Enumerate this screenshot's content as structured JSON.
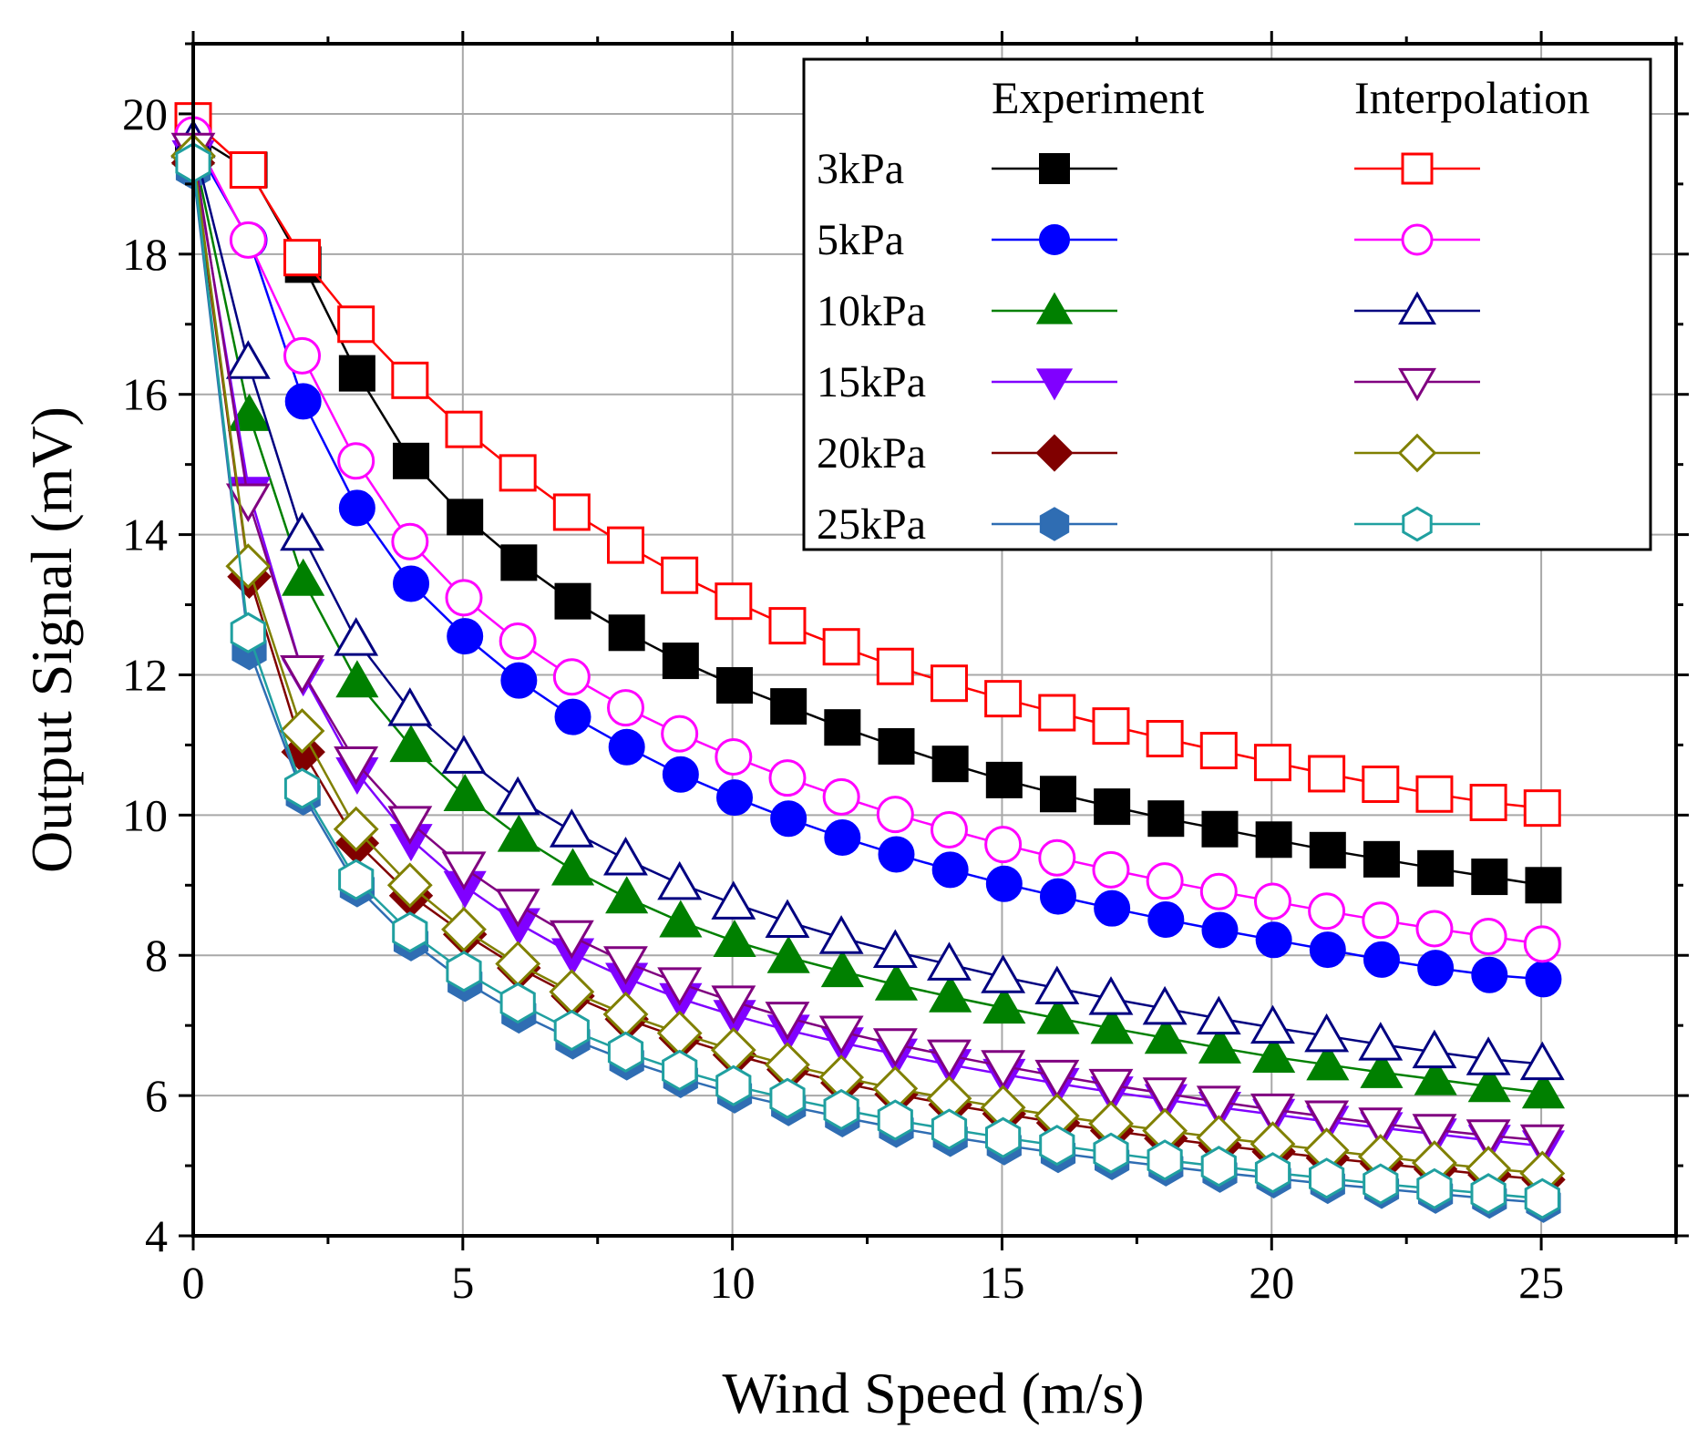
{
  "chart_data": {
    "type": "line",
    "title": "",
    "xlabel": "Wind Speed  (m/s)",
    "ylabel": "Output Signal  (mV)",
    "xlim": [
      0,
      27.5
    ],
    "ylim": [
      4,
      21
    ],
    "xticks": [
      0,
      5,
      10,
      15,
      20,
      25
    ],
    "yticks": [
      4,
      6,
      8,
      10,
      12,
      14,
      16,
      18,
      20
    ],
    "grid": true,
    "legend": {
      "position": "top-right",
      "headers": [
        "Experiment",
        "Interpolation"
      ],
      "rows": [
        "3kPa",
        "5kPa",
        "10kPa",
        "15kPa",
        "20kPa",
        "25kPa"
      ]
    },
    "x": [
      0,
      1,
      2,
      3,
      4,
      5,
      6,
      7,
      8,
      9,
      10,
      11,
      12,
      13,
      14,
      15,
      16,
      17,
      18,
      19,
      20,
      21,
      22,
      23,
      24,
      25
    ],
    "series": [
      {
        "name": "3kPa",
        "group": "Experiment",
        "color": "#000000",
        "marker": "square",
        "filled": true,
        "values": [
          19.7,
          19.2,
          17.85,
          16.3,
          15.05,
          14.25,
          13.6,
          13.05,
          12.6,
          12.2,
          11.85,
          11.55,
          11.25,
          10.98,
          10.73,
          10.5,
          10.3,
          10.12,
          9.95,
          9.8,
          9.65,
          9.5,
          9.37,
          9.24,
          9.12,
          9.0
        ]
      },
      {
        "name": "5kPa",
        "group": "Experiment",
        "color": "#0000ff",
        "marker": "circle",
        "filled": true,
        "values": [
          19.6,
          18.2,
          15.9,
          14.38,
          13.3,
          12.55,
          11.92,
          11.4,
          10.97,
          10.58,
          10.25,
          9.95,
          9.68,
          9.44,
          9.22,
          9.02,
          8.84,
          8.67,
          8.51,
          8.36,
          8.22,
          8.08,
          7.94,
          7.82,
          7.72,
          7.66
        ]
      },
      {
        "name": "10kPa",
        "group": "Experiment",
        "color": "#008000",
        "marker": "triangle-up",
        "filled": true,
        "values": [
          19.5,
          15.7,
          13.35,
          11.9,
          10.98,
          10.28,
          9.7,
          9.22,
          8.82,
          8.48,
          8.2,
          7.97,
          7.77,
          7.58,
          7.41,
          7.25,
          7.1,
          6.96,
          6.82,
          6.68,
          6.55,
          6.44,
          6.33,
          6.23,
          6.13,
          6.04
        ]
      },
      {
        "name": "15kPa",
        "group": "Experiment",
        "color": "#8000ff",
        "marker": "triangle-down",
        "filled": true,
        "values": [
          19.4,
          14.6,
          12.0,
          10.6,
          9.65,
          8.98,
          8.45,
          8.02,
          7.67,
          7.38,
          7.14,
          6.93,
          6.75,
          6.59,
          6.44,
          6.3,
          6.17,
          6.05,
          5.94,
          5.83,
          5.73,
          5.63,
          5.54,
          5.45,
          5.36,
          5.28
        ]
      },
      {
        "name": "20kPa",
        "group": "Experiment",
        "color": "#800000",
        "marker": "diamond",
        "filled": true,
        "values": [
          19.3,
          13.4,
          10.9,
          9.6,
          8.85,
          8.3,
          7.82,
          7.42,
          7.09,
          6.82,
          6.58,
          6.37,
          6.18,
          6.02,
          5.87,
          5.74,
          5.61,
          5.5,
          5.39,
          5.29,
          5.2,
          5.11,
          5.03,
          4.95,
          4.87,
          4.8
        ]
      },
      {
        "name": "25kPa",
        "group": "Experiment",
        "color": "#2f6db3",
        "marker": "hexagon",
        "filled": true,
        "values": [
          19.2,
          12.35,
          10.28,
          8.97,
          8.2,
          7.62,
          7.17,
          6.8,
          6.5,
          6.25,
          6.03,
          5.85,
          5.69,
          5.54,
          5.41,
          5.29,
          5.18,
          5.08,
          4.99,
          4.9,
          4.82,
          4.74,
          4.67,
          4.6,
          4.53,
          4.47
        ]
      },
      {
        "name": "3kPa",
        "group": "Interpolation",
        "color": "#ff0000",
        "marker": "square",
        "filled": false,
        "values": [
          19.9,
          19.2,
          17.95,
          17.0,
          16.2,
          15.5,
          14.88,
          14.32,
          13.85,
          13.42,
          13.05,
          12.7,
          12.4,
          12.12,
          11.88,
          11.66,
          11.46,
          11.27,
          11.09,
          10.92,
          10.75,
          10.59,
          10.44,
          10.3,
          10.18,
          10.1
        ]
      },
      {
        "name": "5kPa",
        "group": "Interpolation",
        "color": "#ff00ff",
        "marker": "circle",
        "filled": false,
        "values": [
          19.7,
          18.2,
          16.55,
          15.05,
          13.9,
          13.1,
          12.48,
          11.97,
          11.53,
          11.16,
          10.83,
          10.53,
          10.26,
          10.01,
          9.79,
          9.58,
          9.39,
          9.22,
          9.06,
          8.91,
          8.77,
          8.63,
          8.5,
          8.38,
          8.27,
          8.16
        ]
      },
      {
        "name": "10kPa",
        "group": "Interpolation",
        "color": "#000080",
        "marker": "triangle-up",
        "filled": false,
        "values": [
          19.6,
          16.45,
          14.0,
          12.5,
          11.5,
          10.82,
          10.23,
          9.77,
          9.37,
          9.02,
          8.74,
          8.48,
          8.25,
          8.05,
          7.87,
          7.69,
          7.53,
          7.38,
          7.24,
          7.1,
          6.97,
          6.85,
          6.73,
          6.62,
          6.52,
          6.45
        ]
      },
      {
        "name": "15kPa",
        "group": "Interpolation",
        "color": "#800080",
        "marker": "triangle-down",
        "filled": false,
        "values": [
          19.5,
          14.5,
          12.05,
          10.75,
          9.9,
          9.25,
          8.72,
          8.27,
          7.9,
          7.6,
          7.34,
          7.11,
          6.91,
          6.73,
          6.57,
          6.42,
          6.28,
          6.15,
          6.03,
          5.91,
          5.8,
          5.7,
          5.6,
          5.51,
          5.43,
          5.36
        ]
      },
      {
        "name": "20kPa",
        "group": "Interpolation",
        "color": "#808000",
        "marker": "diamond",
        "filled": false,
        "values": [
          19.4,
          13.55,
          11.2,
          9.8,
          9.0,
          8.37,
          7.88,
          7.48,
          7.16,
          6.89,
          6.65,
          6.44,
          6.26,
          6.1,
          5.96,
          5.83,
          5.71,
          5.6,
          5.5,
          5.4,
          5.31,
          5.22,
          5.13,
          5.04,
          4.96,
          4.89
        ]
      },
      {
        "name": "25kPa",
        "group": "Interpolation",
        "color": "#20a0a0",
        "marker": "hexagon",
        "filled": false,
        "values": [
          19.3,
          12.6,
          10.38,
          9.08,
          8.33,
          7.77,
          7.32,
          6.93,
          6.62,
          6.36,
          6.14,
          5.96,
          5.8,
          5.65,
          5.52,
          5.4,
          5.29,
          5.18,
          5.08,
          4.99,
          4.9,
          4.82,
          4.74,
          4.67,
          4.6,
          4.53
        ]
      }
    ]
  }
}
